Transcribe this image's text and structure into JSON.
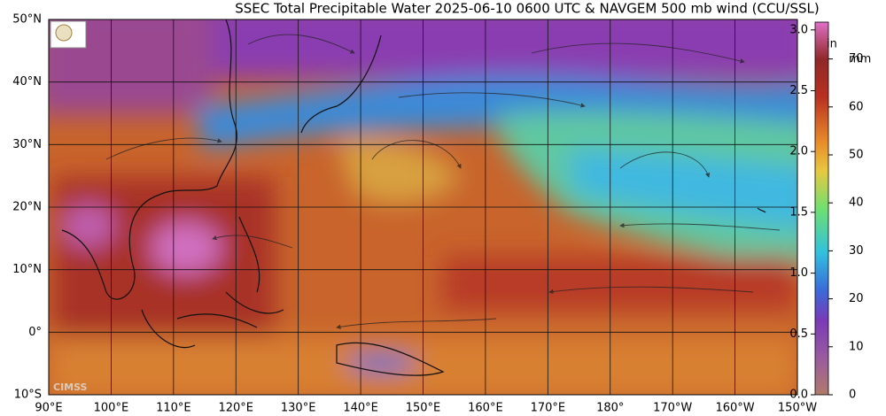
{
  "title": "SSEC Total Precipitable Water  2025-06-10 0600 UTC & NAVGEM 500 mb wind (CCU/SSL)",
  "lat_labels": [
    "50°N",
    "40°N",
    "30°N",
    "20°N",
    "10°N",
    "0°",
    "10°S"
  ],
  "lon_labels": [
    "90°E",
    "100°E",
    "110°E",
    "120°E",
    "130°E",
    "140°E",
    "150°E",
    "160°E",
    "170°E",
    "180°",
    "170°W",
    "160°W",
    "150°W"
  ],
  "colorbar": {
    "inches": {
      "unit": "in",
      "ticks": [
        "3.0",
        "2.5",
        "2.0",
        "1.5",
        "1.0",
        "0.5",
        "0.0"
      ]
    },
    "mm": {
      "unit": "mm",
      "ticks": [
        70,
        60,
        50,
        40,
        30,
        20,
        10,
        0
      ]
    }
  },
  "watermark": "CIMSS"
}
